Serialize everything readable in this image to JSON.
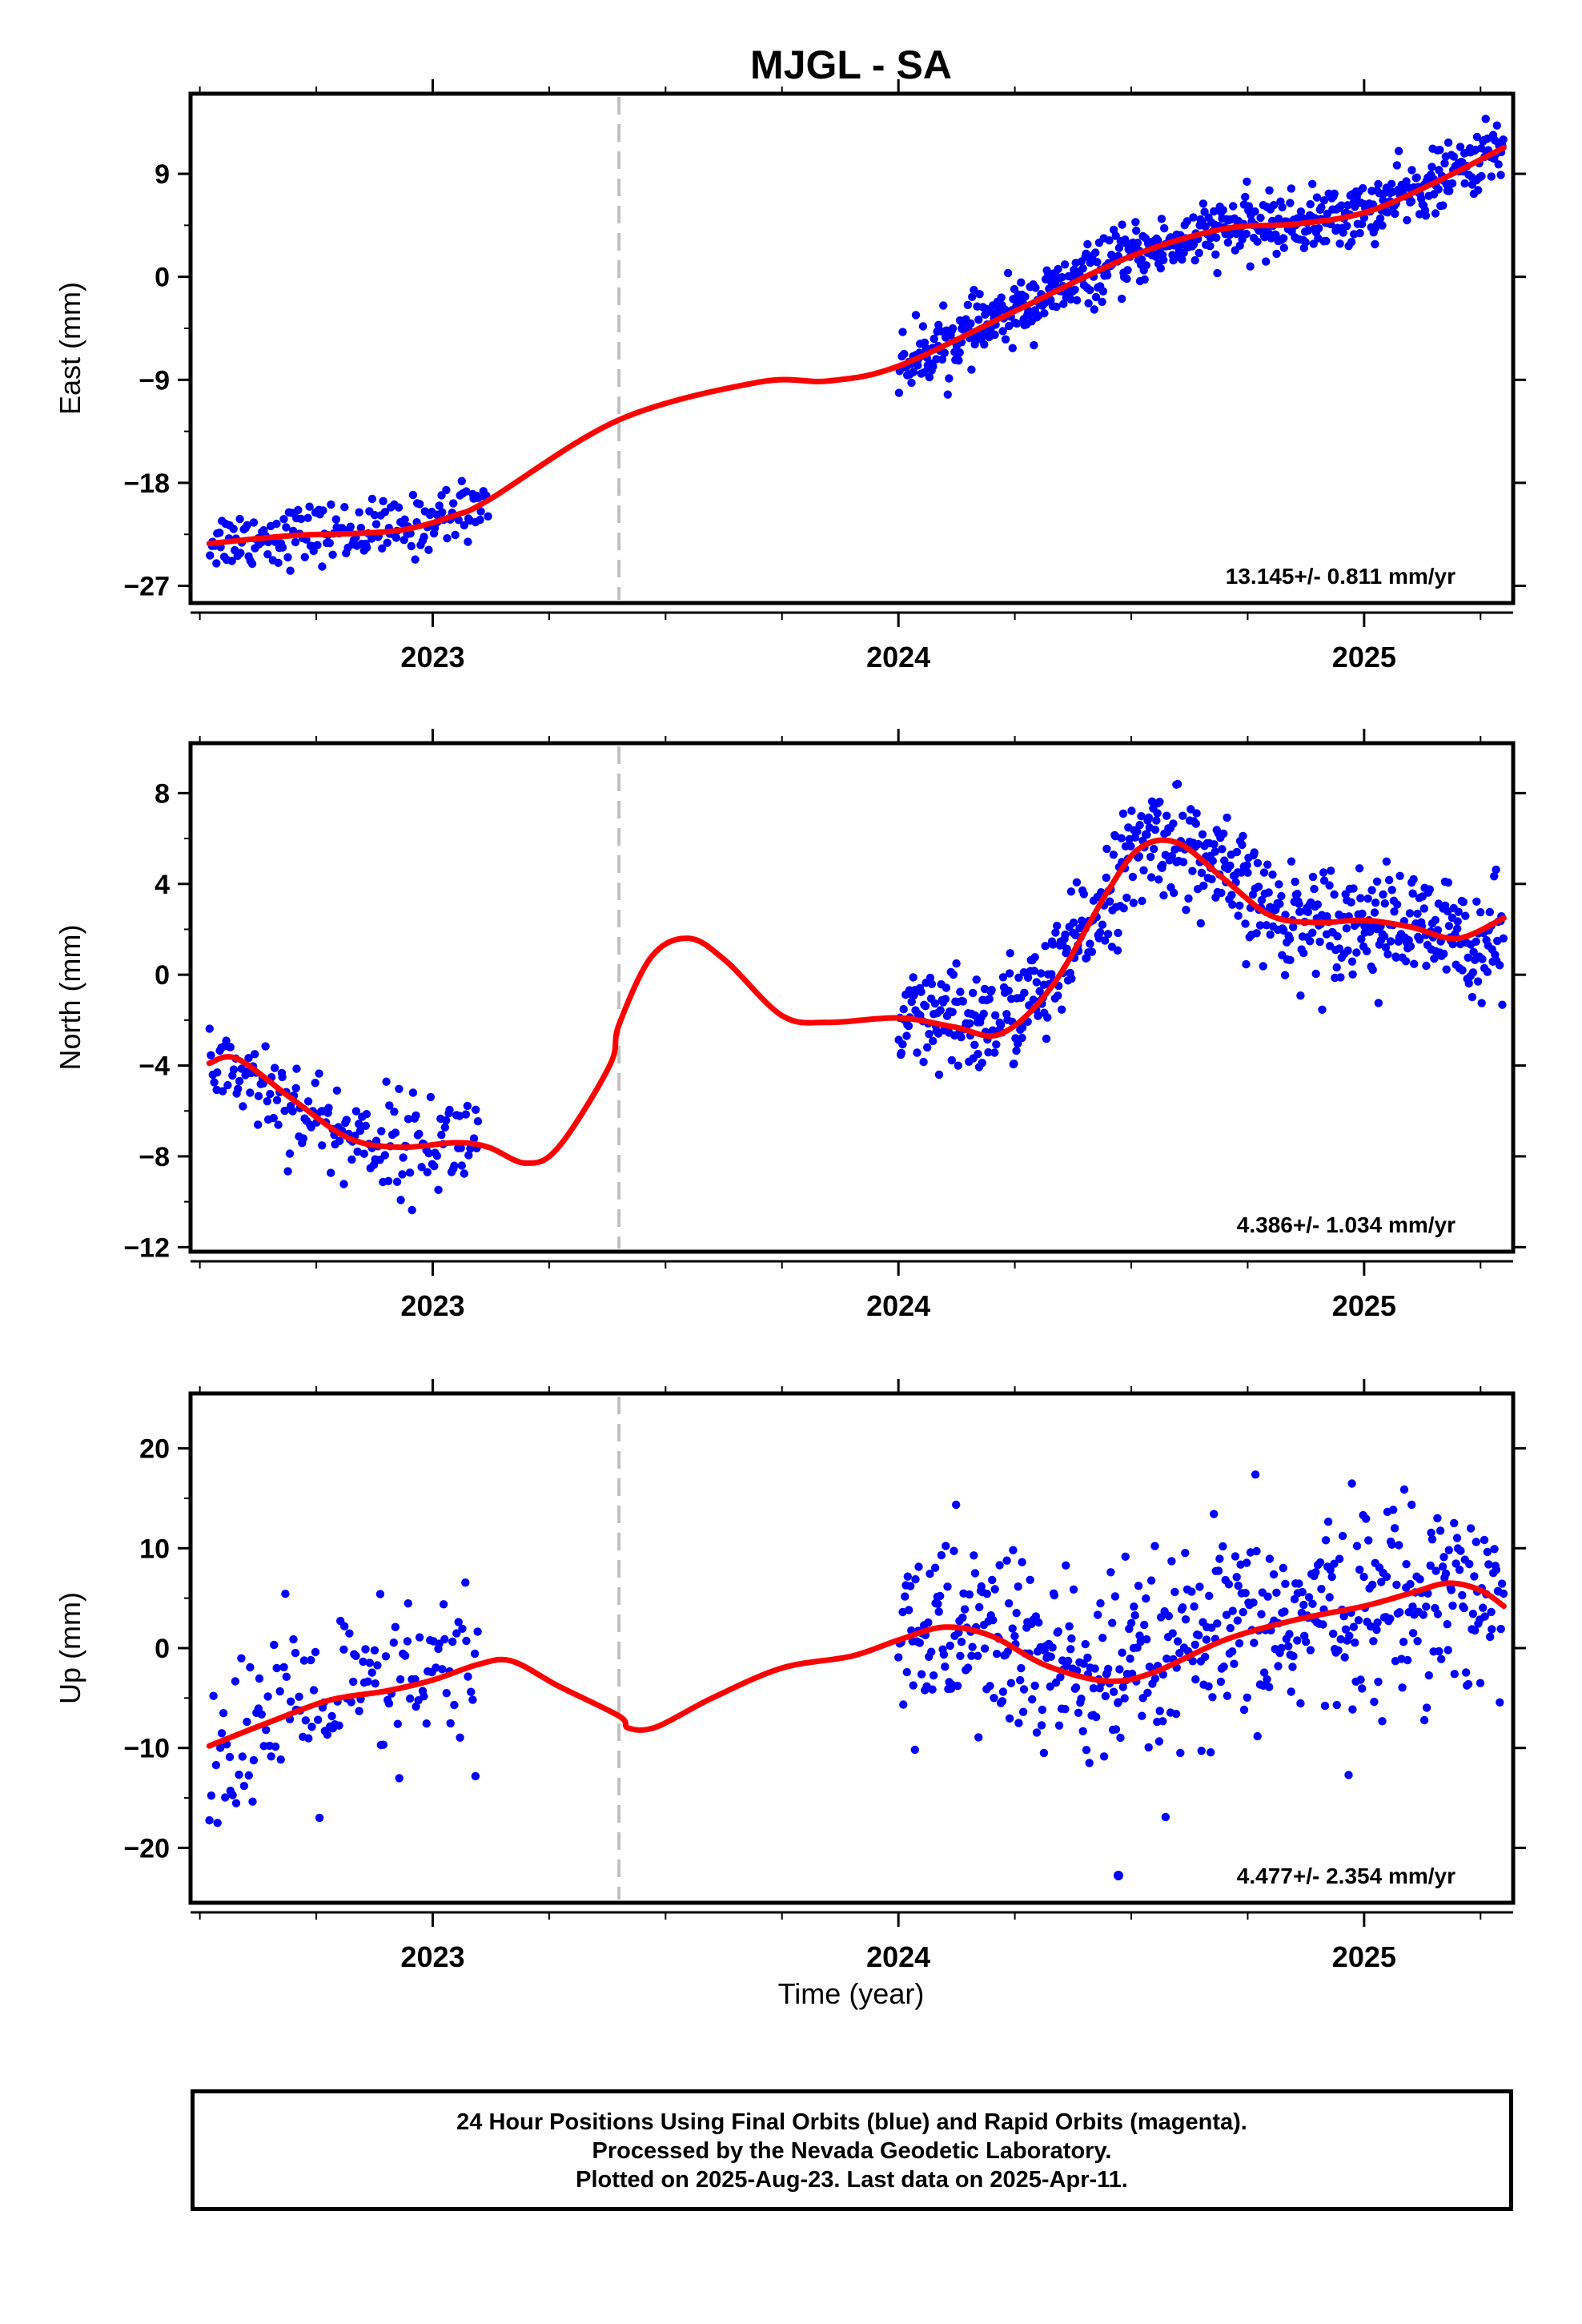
{
  "chart_data": {
    "title": "MJGL - SA",
    "xlabel": "Time (year)",
    "x_range": [
      2022.48,
      2025.32
    ],
    "x_ticks": [
      "2023",
      "2024",
      "2025"
    ],
    "gap_marker_x": 2023.4,
    "colors": {
      "points": "#0000ff",
      "fit": "#ff0000",
      "gap_line": "#c0c0c0",
      "rapid_orbits": "#ff00ff"
    },
    "panels": [
      {
        "type": "scatter",
        "name": "east",
        "ylabel": "East (mm)",
        "ylim": [
          -28.5,
          16
        ],
        "y_ticks": [
          9,
          0,
          -9,
          -18,
          -27
        ],
        "y_tick_labels": [
          "9",
          "0",
          "−9",
          "−18",
          "−27"
        ],
        "rate": "13.145+/- 0.811 mm/yr",
        "fit_knots": [
          [
            2022.52,
            -23.3
          ],
          [
            2022.7,
            -22.6
          ],
          [
            2022.85,
            -22.4
          ],
          [
            2022.95,
            -22
          ],
          [
            2023.05,
            -20.8
          ],
          [
            2023.12,
            -19.5
          ],
          [
            2023.4,
            -12.5
          ],
          [
            2023.7,
            -9.2
          ],
          [
            2023.85,
            -9.1
          ],
          [
            2024.0,
            -7.8
          ],
          [
            2024.25,
            -3
          ],
          [
            2024.5,
            1.8
          ],
          [
            2024.7,
            4.2
          ],
          [
            2024.85,
            4.6
          ],
          [
            2025.0,
            5.6
          ],
          [
            2025.15,
            8.2
          ],
          [
            2025.3,
            11.3
          ]
        ],
        "segments": [
          {
            "x_range": [
              2022.52,
              2023.12
            ],
            "mean": [
              [
                2022.52,
                -23
              ],
              [
                2022.75,
                -22.4
              ],
              [
                2022.95,
                -22
              ],
              [
                2023.12,
                -19.5
              ]
            ],
            "noise": 1.3,
            "count": 180
          },
          {
            "x_range": [
              2024.0,
              2025.3
            ],
            "mean": [
              [
                2024.0,
                -7.8
              ],
              [
                2024.25,
                -3
              ],
              [
                2024.5,
                1.8
              ],
              [
                2024.7,
                4.2
              ],
              [
                2024.85,
                4.6
              ],
              [
                2025.0,
                5.6
              ],
              [
                2025.15,
                8.2
              ],
              [
                2025.3,
                11.3
              ]
            ],
            "noise": 1.3,
            "count": 650
          }
        ]
      },
      {
        "type": "scatter",
        "name": "north",
        "ylabel": "North (mm)",
        "ylim": [
          -12.2,
          10.2
        ],
        "y_ticks": [
          8,
          4,
          0,
          -4,
          -8,
          -12
        ],
        "y_tick_labels": [
          "8",
          "4",
          "0",
          "−4",
          "−8",
          "−12"
        ],
        "rate": "4.386+/- 1.034 mm/yr",
        "fit_knots": [
          [
            2022.52,
            -3.9
          ],
          [
            2022.58,
            -3.7
          ],
          [
            2022.7,
            -5.5
          ],
          [
            2022.82,
            -7.2
          ],
          [
            2022.93,
            -7.6
          ],
          [
            2023.05,
            -7.4
          ],
          [
            2023.12,
            -7.6
          ],
          [
            2023.2,
            -8.3
          ],
          [
            2023.27,
            -7.6
          ],
          [
            2023.38,
            -4
          ],
          [
            2023.4,
            -2.2
          ],
          [
            2023.47,
            0.8
          ],
          [
            2023.55,
            1.6
          ],
          [
            2023.63,
            0.6
          ],
          [
            2023.75,
            -1.8
          ],
          [
            2023.85,
            -2.1
          ],
          [
            2024.0,
            -1.9
          ],
          [
            2024.12,
            -2.3
          ],
          [
            2024.22,
            -2.6
          ],
          [
            2024.33,
            -0.5
          ],
          [
            2024.45,
            3.7
          ],
          [
            2024.52,
            5.6
          ],
          [
            2024.6,
            5.8
          ],
          [
            2024.7,
            4.2
          ],
          [
            2024.8,
            2.6
          ],
          [
            2024.9,
            2.3
          ],
          [
            2025.0,
            2.4
          ],
          [
            2025.1,
            2.1
          ],
          [
            2025.2,
            1.6
          ],
          [
            2025.3,
            2.5
          ]
        ],
        "segments": [
          {
            "x_range": [
              2022.52,
              2023.1
            ],
            "mean": [
              [
                2022.52,
                -3.5
              ],
              [
                2022.65,
                -5
              ],
              [
                2022.8,
                -7
              ],
              [
                2022.95,
                -7.5
              ],
              [
                2023.1,
                -7.2
              ]
            ],
            "noise": 1.1,
            "count": 170
          },
          {
            "x_range": [
              2024.0,
              2025.3
            ],
            "mean": [
              [
                2024.0,
                -2.3
              ],
              [
                2024.2,
                -2.1
              ],
              [
                2024.33,
                -0.5
              ],
              [
                2024.45,
                3.7
              ],
              [
                2024.55,
                6.2
              ],
              [
                2024.62,
                5.6
              ],
              [
                2024.72,
                4
              ],
              [
                2024.82,
                2.5
              ],
              [
                2025.0,
                2.4
              ],
              [
                2025.2,
                1.6
              ],
              [
                2025.3,
                1.5
              ]
            ],
            "noise": 1.2,
            "count": 640
          }
        ]
      },
      {
        "type": "scatter",
        "name": "up",
        "ylabel": "Up (mm)",
        "ylim": [
          -25.5,
          25.5
        ],
        "y_ticks": [
          20,
          10,
          0,
          -10,
          -20
        ],
        "y_tick_labels": [
          "20",
          "10",
          "0",
          "−10",
          "−20"
        ],
        "rate": "4.477+/- 2.354 mm/yr",
        "fit_knots": [
          [
            2022.52,
            -9.8
          ],
          [
            2022.65,
            -7.4
          ],
          [
            2022.78,
            -5.2
          ],
          [
            2022.9,
            -4.3
          ],
          [
            2023.0,
            -3.2
          ],
          [
            2023.1,
            -1.6
          ],
          [
            2023.17,
            -1.3
          ],
          [
            2023.27,
            -3.8
          ],
          [
            2023.4,
            -6.8
          ],
          [
            2023.42,
            -8
          ],
          [
            2023.48,
            -7.9
          ],
          [
            2023.6,
            -5
          ],
          [
            2023.75,
            -2
          ],
          [
            2023.9,
            -0.8
          ],
          [
            2024.0,
            0.8
          ],
          [
            2024.1,
            2.1
          ],
          [
            2024.2,
            1.2
          ],
          [
            2024.32,
            -1.8
          ],
          [
            2024.45,
            -3.3
          ],
          [
            2024.55,
            -2.4
          ],
          [
            2024.7,
            0.8
          ],
          [
            2024.85,
            2.8
          ],
          [
            2025.0,
            4.2
          ],
          [
            2025.1,
            5.5
          ],
          [
            2025.18,
            6.5
          ],
          [
            2025.25,
            5.8
          ],
          [
            2025.3,
            4.2
          ]
        ],
        "segments": [
          {
            "x_range": [
              2022.52,
              2023.1
            ],
            "mean": [
              [
                2022.52,
                -9.5
              ],
              [
                2022.7,
                -6.5
              ],
              [
                2022.9,
                -4.3
              ],
              [
                2023.1,
                -1.8
              ]
            ],
            "noise": 4.5,
            "count": 140
          },
          {
            "x_range": [
              2024.0,
              2025.3
            ],
            "mean": [
              [
                2024.0,
                1
              ],
              [
                2024.1,
                2.1
              ],
              [
                2024.2,
                1.2
              ],
              [
                2024.32,
                -1.8
              ],
              [
                2024.45,
                -3.3
              ],
              [
                2024.55,
                -2.4
              ],
              [
                2024.7,
                0.8
              ],
              [
                2024.85,
                2.8
              ],
              [
                2025.0,
                4.2
              ],
              [
                2025.18,
                6.5
              ],
              [
                2025.3,
                4.2
              ]
            ],
            "noise": 5,
            "count": 540
          }
        ],
        "legend_marker": true
      }
    ]
  },
  "footer": {
    "line1": "24 Hour Positions Using Final Orbits (blue) and Rapid Orbits (magenta).",
    "line2": "Processed by the Nevada Geodetic Laboratory.",
    "line3": "Plotted on 2025-Aug-23. Last data on 2025-Apr-11."
  }
}
